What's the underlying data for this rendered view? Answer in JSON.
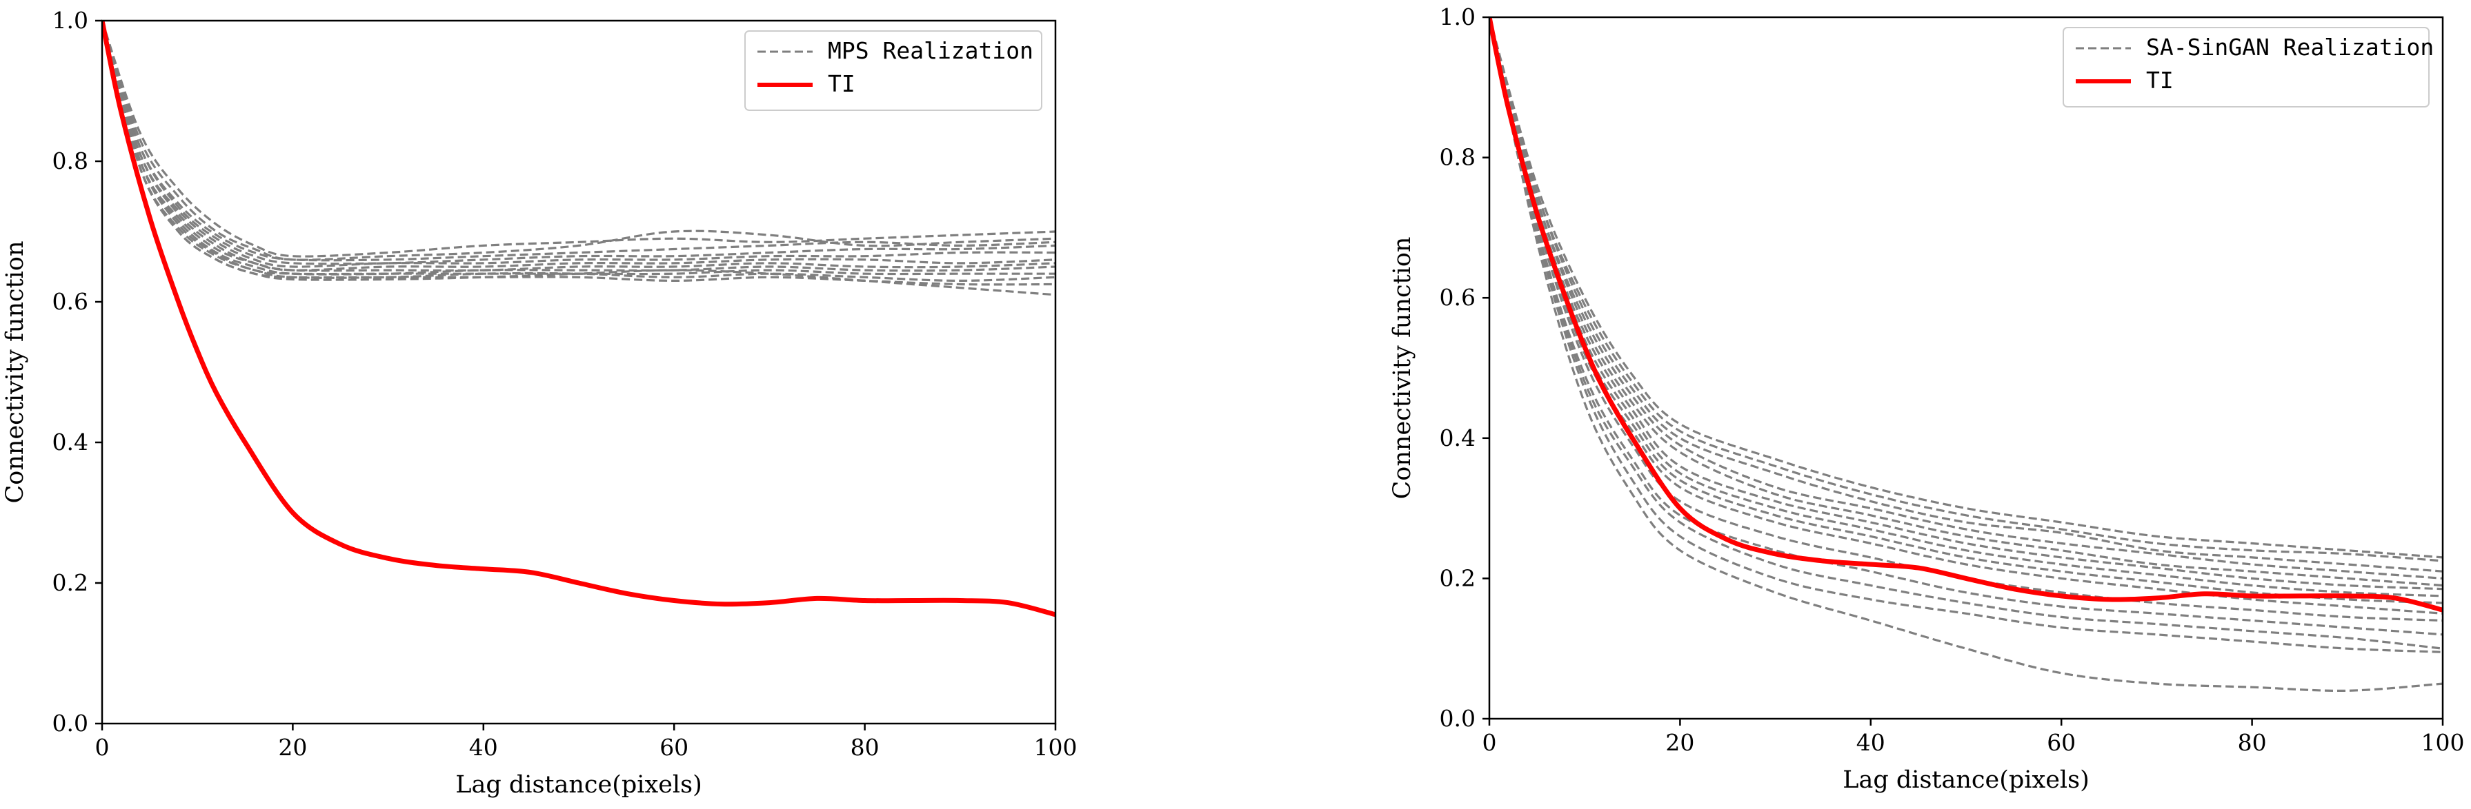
{
  "chart_data": [
    {
      "type": "line",
      "title": "",
      "xlabel": "Lag distance(pixels)",
      "ylabel": "Connectivity function",
      "xlim": [
        0,
        100
      ],
      "ylim": [
        0.0,
        1.0
      ],
      "xticks": [
        "0",
        "20",
        "40",
        "60",
        "80",
        "100"
      ],
      "yticks": [
        "0.0",
        "0.2",
        "0.4",
        "0.6",
        "0.8",
        "1.0"
      ],
      "grid": false,
      "legend_position": "top-right",
      "realization_style": {
        "color": "#7f7f7f",
        "dash": "dashed"
      },
      "ti_style": {
        "color": "#ff0000",
        "dash": "solid"
      },
      "legend": [
        {
          "label": "MPS Realization",
          "style": "dashed",
          "color": "#7f7f7f"
        },
        {
          "label": "TI",
          "style": "solid",
          "color": "#ff0000"
        }
      ],
      "series": [
        {
          "name": "TI",
          "x": [
            0,
            2,
            5,
            8,
            10,
            12,
            15,
            20,
            25,
            30,
            35,
            40,
            45,
            50,
            55,
            60,
            65,
            70,
            75,
            80,
            85,
            90,
            95,
            100
          ],
          "y": [
            1.0,
            0.87,
            0.72,
            0.6,
            0.53,
            0.47,
            0.4,
            0.3,
            0.255,
            0.235,
            0.225,
            0.22,
            0.215,
            0.2,
            0.185,
            0.175,
            0.17,
            0.172,
            0.178,
            0.175,
            0.175,
            0.175,
            0.172,
            0.155
          ]
        },
        {
          "name": "MPS Realization",
          "x": [
            0,
            4,
            8,
            12,
            16,
            20,
            30,
            40,
            50,
            60,
            70,
            80,
            90,
            100
          ],
          "y": [
            1.0,
            0.84,
            0.76,
            0.71,
            0.68,
            0.665,
            0.67,
            0.68,
            0.685,
            0.69,
            0.685,
            0.69,
            0.695,
            0.7
          ]
        },
        {
          "name": "MPS Realization",
          "x": [
            0,
            4,
            8,
            12,
            16,
            20,
            30,
            40,
            50,
            60,
            70,
            80,
            90,
            100
          ],
          "y": [
            1.0,
            0.83,
            0.75,
            0.7,
            0.675,
            0.66,
            0.665,
            0.67,
            0.68,
            0.7,
            0.695,
            0.68,
            0.685,
            0.69
          ]
        },
        {
          "name": "MPS Realization",
          "x": [
            0,
            4,
            8,
            12,
            16,
            20,
            30,
            40,
            50,
            60,
            70,
            80,
            90,
            100
          ],
          "y": [
            1.0,
            0.82,
            0.74,
            0.695,
            0.67,
            0.66,
            0.66,
            0.665,
            0.67,
            0.675,
            0.68,
            0.685,
            0.68,
            0.685
          ]
        },
        {
          "name": "MPS Realization",
          "x": [
            0,
            4,
            8,
            12,
            16,
            20,
            30,
            40,
            50,
            60,
            70,
            80,
            90,
            100
          ],
          "y": [
            1.0,
            0.82,
            0.735,
            0.69,
            0.665,
            0.655,
            0.655,
            0.66,
            0.665,
            0.665,
            0.67,
            0.675,
            0.675,
            0.68
          ]
        },
        {
          "name": "MPS Realization",
          "x": [
            0,
            4,
            8,
            12,
            16,
            20,
            30,
            40,
            50,
            60,
            70,
            80,
            90,
            100
          ],
          "y": [
            1.0,
            0.81,
            0.73,
            0.685,
            0.66,
            0.65,
            0.655,
            0.655,
            0.66,
            0.66,
            0.665,
            0.665,
            0.67,
            0.67
          ]
        },
        {
          "name": "MPS Realization",
          "x": [
            0,
            4,
            8,
            12,
            16,
            20,
            30,
            40,
            50,
            60,
            70,
            80,
            90,
            100
          ],
          "y": [
            1.0,
            0.81,
            0.725,
            0.68,
            0.655,
            0.645,
            0.65,
            0.65,
            0.655,
            0.655,
            0.66,
            0.66,
            0.655,
            0.66
          ]
        },
        {
          "name": "MPS Realization",
          "x": [
            0,
            4,
            8,
            12,
            16,
            20,
            30,
            40,
            50,
            60,
            70,
            80,
            90,
            100
          ],
          "y": [
            1.0,
            0.8,
            0.72,
            0.675,
            0.655,
            0.645,
            0.645,
            0.645,
            0.65,
            0.65,
            0.655,
            0.65,
            0.65,
            0.655
          ]
        },
        {
          "name": "MPS Realization",
          "x": [
            0,
            4,
            8,
            12,
            16,
            20,
            30,
            40,
            50,
            60,
            70,
            80,
            90,
            100
          ],
          "y": [
            1.0,
            0.8,
            0.715,
            0.67,
            0.65,
            0.64,
            0.64,
            0.645,
            0.645,
            0.645,
            0.65,
            0.645,
            0.645,
            0.65
          ]
        },
        {
          "name": "MPS Realization",
          "x": [
            0,
            4,
            8,
            12,
            16,
            20,
            30,
            40,
            50,
            60,
            70,
            80,
            90,
            100
          ],
          "y": [
            1.0,
            0.8,
            0.71,
            0.668,
            0.645,
            0.64,
            0.64,
            0.64,
            0.64,
            0.64,
            0.645,
            0.64,
            0.64,
            0.64
          ]
        },
        {
          "name": "MPS Realization",
          "x": [
            0,
            4,
            8,
            12,
            16,
            20,
            30,
            40,
            50,
            60,
            70,
            80,
            90,
            100
          ],
          "y": [
            1.0,
            0.79,
            0.705,
            0.665,
            0.645,
            0.635,
            0.635,
            0.64,
            0.64,
            0.635,
            0.64,
            0.635,
            0.63,
            0.635
          ]
        },
        {
          "name": "MPS Realization",
          "x": [
            0,
            4,
            8,
            12,
            16,
            20,
            30,
            40,
            50,
            60,
            70,
            80,
            90,
            100
          ],
          "y": [
            1.0,
            0.79,
            0.7,
            0.66,
            0.64,
            0.635,
            0.635,
            0.635,
            0.635,
            0.63,
            0.635,
            0.63,
            0.625,
            0.625
          ]
        },
        {
          "name": "MPS Realization",
          "x": [
            0,
            4,
            8,
            12,
            16,
            20,
            30,
            40,
            50,
            60,
            70,
            80,
            90,
            100
          ],
          "y": [
            1.0,
            0.79,
            0.7,
            0.66,
            0.64,
            0.632,
            0.632,
            0.635,
            0.64,
            0.645,
            0.64,
            0.63,
            0.62,
            0.61
          ]
        }
      ]
    },
    {
      "type": "line",
      "title": "",
      "xlabel": "Lag distance(pixels)",
      "ylabel": "Connectivity function",
      "xlim": [
        0,
        100
      ],
      "ylim": [
        0.0,
        1.0
      ],
      "xticks": [
        "0",
        "20",
        "40",
        "60",
        "80",
        "100"
      ],
      "yticks": [
        "0.0",
        "0.2",
        "0.4",
        "0.6",
        "0.8",
        "1.0"
      ],
      "grid": false,
      "legend_position": "top-right",
      "realization_style": {
        "color": "#7f7f7f",
        "dash": "dashed"
      },
      "ti_style": {
        "color": "#ff0000",
        "dash": "solid"
      },
      "legend": [
        {
          "label": "SA-SinGAN Realization",
          "style": "dashed",
          "color": "#7f7f7f"
        },
        {
          "label": "TI",
          "style": "solid",
          "color": "#ff0000"
        }
      ],
      "series": [
        {
          "name": "TI",
          "x": [
            0,
            2,
            5,
            8,
            10,
            12,
            15,
            20,
            25,
            30,
            35,
            40,
            45,
            50,
            55,
            60,
            65,
            70,
            75,
            80,
            85,
            90,
            95,
            100
          ],
          "y": [
            1.0,
            0.87,
            0.72,
            0.6,
            0.53,
            0.47,
            0.4,
            0.3,
            0.255,
            0.235,
            0.225,
            0.22,
            0.215,
            0.2,
            0.185,
            0.175,
            0.17,
            0.172,
            0.178,
            0.175,
            0.175,
            0.175,
            0.172,
            0.155
          ]
        },
        {
          "name": "SA-SinGAN Realization",
          "x": [
            0,
            5,
            10,
            15,
            20,
            30,
            40,
            50,
            60,
            70,
            80,
            90,
            100
          ],
          "y": [
            1.0,
            0.76,
            0.6,
            0.49,
            0.42,
            0.37,
            0.33,
            0.3,
            0.28,
            0.26,
            0.25,
            0.24,
            0.23
          ]
        },
        {
          "name": "SA-SinGAN Realization",
          "x": [
            0,
            5,
            10,
            15,
            20,
            30,
            40,
            50,
            60,
            70,
            80,
            90,
            100
          ],
          "y": [
            1.0,
            0.75,
            0.59,
            0.48,
            0.41,
            0.36,
            0.32,
            0.29,
            0.27,
            0.25,
            0.24,
            0.235,
            0.225
          ]
        },
        {
          "name": "SA-SinGAN Realization",
          "x": [
            0,
            5,
            10,
            15,
            20,
            30,
            40,
            50,
            60,
            70,
            80,
            90,
            100
          ],
          "y": [
            1.0,
            0.75,
            0.58,
            0.47,
            0.4,
            0.35,
            0.31,
            0.28,
            0.265,
            0.24,
            0.23,
            0.22,
            0.21
          ]
        },
        {
          "name": "SA-SinGAN Realization",
          "x": [
            0,
            5,
            10,
            15,
            20,
            30,
            40,
            50,
            60,
            70,
            80,
            90,
            100
          ],
          "y": [
            1.0,
            0.74,
            0.57,
            0.46,
            0.39,
            0.33,
            0.3,
            0.27,
            0.25,
            0.235,
            0.22,
            0.21,
            0.2
          ]
        },
        {
          "name": "SA-SinGAN Realization",
          "x": [
            0,
            5,
            10,
            15,
            20,
            30,
            40,
            50,
            60,
            70,
            80,
            90,
            100
          ],
          "y": [
            1.0,
            0.74,
            0.56,
            0.45,
            0.38,
            0.32,
            0.29,
            0.26,
            0.24,
            0.22,
            0.21,
            0.2,
            0.19
          ]
        },
        {
          "name": "SA-SinGAN Realization",
          "x": [
            0,
            5,
            10,
            15,
            20,
            30,
            40,
            50,
            60,
            70,
            80,
            90,
            100
          ],
          "y": [
            1.0,
            0.73,
            0.55,
            0.44,
            0.36,
            0.31,
            0.28,
            0.25,
            0.23,
            0.215,
            0.2,
            0.19,
            0.185
          ]
        },
        {
          "name": "SA-SinGAN Realization",
          "x": [
            0,
            5,
            10,
            15,
            20,
            30,
            40,
            50,
            60,
            70,
            80,
            90,
            100
          ],
          "y": [
            1.0,
            0.73,
            0.54,
            0.43,
            0.35,
            0.3,
            0.27,
            0.24,
            0.22,
            0.205,
            0.19,
            0.18,
            0.175
          ]
        },
        {
          "name": "SA-SinGAN Realization",
          "x": [
            0,
            5,
            10,
            15,
            20,
            30,
            40,
            50,
            60,
            70,
            80,
            90,
            100
          ],
          "y": [
            1.0,
            0.72,
            0.53,
            0.42,
            0.34,
            0.29,
            0.26,
            0.23,
            0.21,
            0.195,
            0.18,
            0.17,
            0.165
          ]
        },
        {
          "name": "SA-SinGAN Realization",
          "x": [
            0,
            5,
            10,
            15,
            20,
            30,
            40,
            50,
            60,
            70,
            80,
            90,
            100
          ],
          "y": [
            1.0,
            0.72,
            0.52,
            0.41,
            0.33,
            0.28,
            0.25,
            0.22,
            0.2,
            0.185,
            0.17,
            0.16,
            0.15
          ]
        },
        {
          "name": "SA-SinGAN Realization",
          "x": [
            0,
            5,
            10,
            15,
            20,
            30,
            40,
            50,
            60,
            70,
            80,
            90,
            100
          ],
          "y": [
            1.0,
            0.71,
            0.51,
            0.39,
            0.31,
            0.26,
            0.23,
            0.2,
            0.18,
            0.165,
            0.155,
            0.145,
            0.14
          ]
        },
        {
          "name": "SA-SinGAN Realization",
          "x": [
            0,
            5,
            10,
            15,
            20,
            30,
            40,
            50,
            60,
            70,
            80,
            90,
            100
          ],
          "y": [
            1.0,
            0.7,
            0.49,
            0.37,
            0.29,
            0.24,
            0.21,
            0.18,
            0.16,
            0.15,
            0.14,
            0.13,
            0.12
          ]
        },
        {
          "name": "SA-SinGAN Realization",
          "x": [
            0,
            5,
            10,
            15,
            20,
            30,
            40,
            50,
            60,
            70,
            80,
            90,
            100
          ],
          "y": [
            1.0,
            0.7,
            0.48,
            0.36,
            0.28,
            0.22,
            0.19,
            0.165,
            0.145,
            0.135,
            0.125,
            0.115,
            0.1
          ]
        },
        {
          "name": "SA-SinGAN Realization",
          "x": [
            0,
            5,
            10,
            15,
            20,
            30,
            40,
            50,
            60,
            70,
            80,
            90,
            100
          ],
          "y": [
            1.0,
            0.69,
            0.47,
            0.34,
            0.26,
            0.2,
            0.17,
            0.15,
            0.13,
            0.12,
            0.11,
            0.1,
            0.095
          ]
        },
        {
          "name": "SA-SinGAN Realization",
          "x": [
            0,
            5,
            10,
            15,
            20,
            30,
            40,
            50,
            60,
            70,
            80,
            90,
            100
          ],
          "y": [
            1.0,
            0.68,
            0.45,
            0.32,
            0.24,
            0.18,
            0.14,
            0.1,
            0.065,
            0.05,
            0.045,
            0.04,
            0.05
          ]
        }
      ]
    }
  ]
}
